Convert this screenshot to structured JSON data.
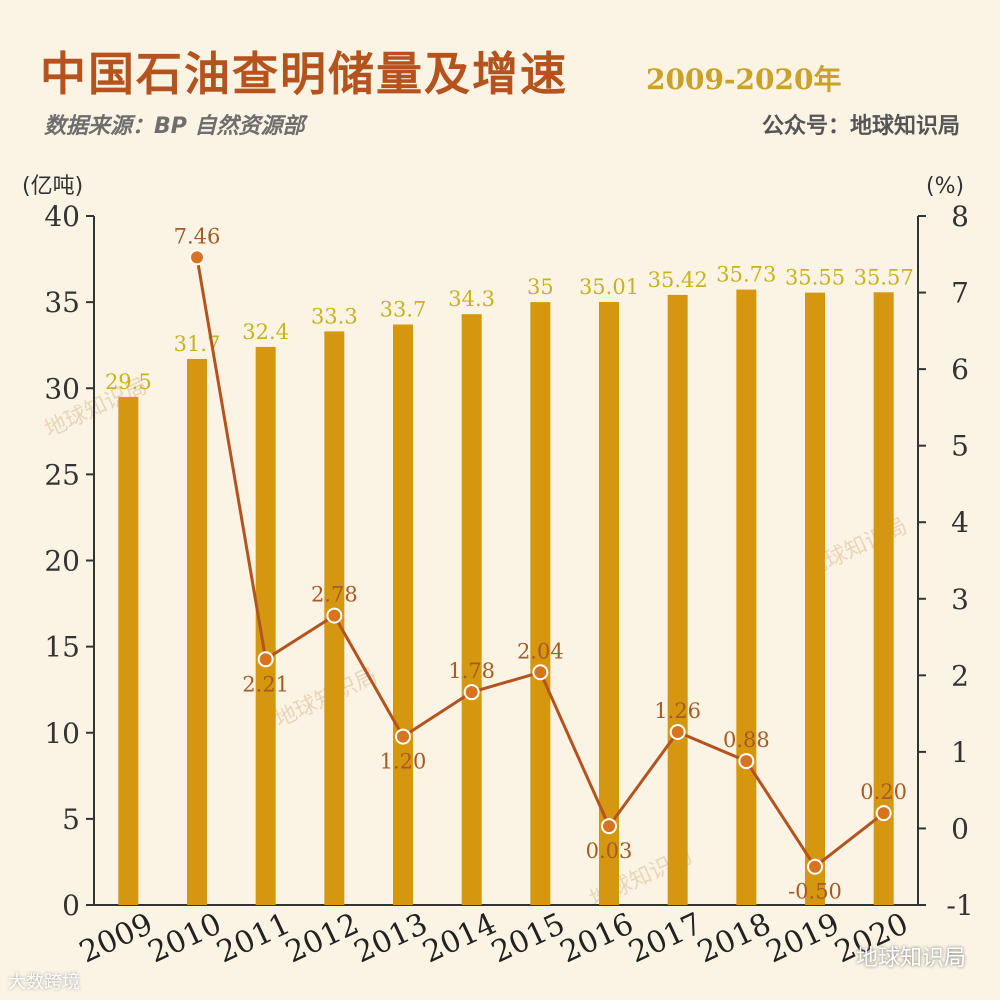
{
  "header": {
    "title": "中国石油查明储量及增速",
    "subtitle": "2009-2020年",
    "source": "数据来源：BP 自然资源部",
    "account": "公众号：地球知识局"
  },
  "footer": {
    "left": "大数跨境",
    "right": "地球知识局"
  },
  "watermark": "地球知识局",
  "colors": {
    "bar": "#d4970f",
    "line": "#b5531f",
    "point_fill": "#d8741f",
    "bar_label": "#c9b21f",
    "line_label": "#a85a25",
    "axis": "#333333"
  },
  "chart_data": {
    "type": "bar",
    "categories": [
      "2009",
      "2010",
      "2011",
      "2012",
      "2013",
      "2014",
      "2015",
      "2016",
      "2017",
      "2018",
      "2019",
      "2020"
    ],
    "left_axis": {
      "label": "(亿吨)",
      "ylim": [
        0,
        40
      ],
      "ticks": [
        0,
        5,
        10,
        15,
        20,
        25,
        30,
        35,
        40
      ]
    },
    "right_axis": {
      "label": "(%)",
      "ylim": [
        -1,
        8
      ],
      "ticks": [
        -1,
        0,
        1,
        2,
        3,
        4,
        5,
        6,
        7,
        8
      ]
    },
    "series": [
      {
        "type": "bar",
        "axis": "left",
        "values": [
          29.5,
          31.7,
          32.4,
          33.3,
          33.7,
          34.3,
          35,
          35.01,
          35.42,
          35.73,
          35.55,
          35.57
        ],
        "labels": [
          "29.5",
          "31.7",
          "32.4",
          "33.3",
          "33.7",
          "34.3",
          "35",
          "35.01",
          "35.42",
          "35.73",
          "35.55",
          "35.57"
        ]
      },
      {
        "type": "line",
        "axis": "right",
        "x": [
          "2010",
          "2011",
          "2012",
          "2013",
          "2014",
          "2015",
          "2016",
          "2017",
          "2018",
          "2019",
          "2020"
        ],
        "values": [
          7.46,
          2.21,
          2.78,
          1.2,
          1.78,
          2.04,
          0.03,
          1.26,
          0.88,
          -0.5,
          0.2
        ],
        "labels": [
          "7.46",
          "2.21",
          "2.78",
          "1.20",
          "1.78",
          "2.04",
          "0.03",
          "1.26",
          "0.88",
          "-0.50",
          "0.20"
        ]
      }
    ],
    "grid": false,
    "legend": "none"
  }
}
